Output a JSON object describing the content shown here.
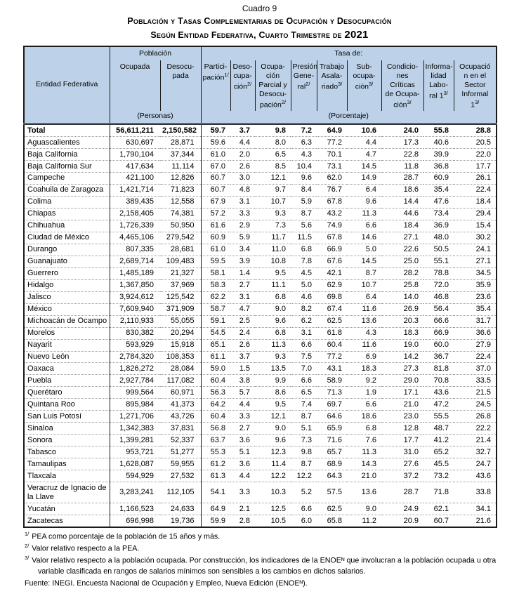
{
  "title": {
    "cuadro": "Cuadro 9",
    "line1": "Población y Tasas Complementarias de Ocupación y Desocupación",
    "line2": "Según Entidad Federativa, Cuarto Trimestre de ",
    "year": "2021"
  },
  "table": {
    "columns": {
      "entity": "Entidad Federativa",
      "poblacion_group": "Población",
      "tasa_group": "Tasa de:",
      "personas_unit": "(Personas)",
      "porcentaje_unit": "(Porcentaje)",
      "ocupada": "Ocupada",
      "desocupada": "Desocu-\npada",
      "rates": [
        {
          "label": "Partici-\npación",
          "sup": "1/"
        },
        {
          "label": "Deso-\ncupa-\nción",
          "sup": "2/"
        },
        {
          "label": "Ocupa-\nción\nParcial y\nDesocu-\npación",
          "sup": "2/"
        },
        {
          "label": "Presión\nGene-\nral",
          "sup": "2/"
        },
        {
          "label": "Trabajo\nAsala-\nriado",
          "sup": "3/"
        },
        {
          "label": "Sub-\nocupa-\nción",
          "sup": "3/"
        },
        {
          "label": "Condicio-\nnes Críticas\nde Ocupa-\nción",
          "sup": "3/"
        },
        {
          "label": "Informa-\nlidad\nLabo-\nral 1",
          "sup": "3/"
        },
        {
          "label": "Ocupació\nn en el\nSector\nInformal\n1",
          "sup": "3/"
        }
      ]
    },
    "rows": [
      {
        "name": "Total",
        "ocupada": "56,611,211",
        "desocupada": "2,150,582",
        "rates": [
          "59.7",
          "3.7",
          "9.8",
          "7.2",
          "64.9",
          "10.6",
          "24.0",
          "55.8",
          "28.8"
        ]
      },
      {
        "name": "Aguascalientes",
        "ocupada": "630,697",
        "desocupada": "28,871",
        "rates": [
          "59.6",
          "4.4",
          "8.0",
          "6.3",
          "77.2",
          "4.4",
          "17.3",
          "40.6",
          "20.5"
        ]
      },
      {
        "name": "Baja California",
        "ocupada": "1,790,104",
        "desocupada": "37,344",
        "rates": [
          "61.0",
          "2.0",
          "6.5",
          "4.3",
          "70.1",
          "4.7",
          "22.8",
          "39.9",
          "22.0"
        ]
      },
      {
        "name": "Baja California Sur",
        "ocupada": "417,634",
        "desocupada": "11,114",
        "rates": [
          "67.0",
          "2.6",
          "8.5",
          "10.4",
          "73.1",
          "14.5",
          "11.8",
          "36.8",
          "17.7"
        ]
      },
      {
        "name": "Campeche",
        "ocupada": "421,100",
        "desocupada": "12,826",
        "rates": [
          "60.7",
          "3.0",
          "12.1",
          "9.6",
          "62.0",
          "14.9",
          "28.7",
          "60.9",
          "26.1"
        ]
      },
      {
        "name": "Coahuila de Zaragoza",
        "ocupada": "1,421,714",
        "desocupada": "71,823",
        "rates": [
          "60.7",
          "4.8",
          "9.7",
          "8.4",
          "76.7",
          "6.4",
          "18.6",
          "35.4",
          "22.4"
        ]
      },
      {
        "name": "Colima",
        "ocupada": "389,435",
        "desocupada": "12,558",
        "rates": [
          "67.9",
          "3.1",
          "10.7",
          "5.9",
          "67.8",
          "9.6",
          "14.4",
          "47.6",
          "18.4"
        ]
      },
      {
        "name": "Chiapas",
        "ocupada": "2,158,405",
        "desocupada": "74,381",
        "rates": [
          "57.2",
          "3.3",
          "9.3",
          "8.7",
          "43.2",
          "11.3",
          "44.6",
          "73.4",
          "29.4"
        ]
      },
      {
        "name": "Chihuahua",
        "ocupada": "1,726,339",
        "desocupada": "50,950",
        "rates": [
          "61.6",
          "2.9",
          "7.3",
          "5.6",
          "74.9",
          "6.6",
          "18.4",
          "36.9",
          "15.4"
        ]
      },
      {
        "name": "Ciudad de México",
        "ocupada": "4,465,106",
        "desocupada": "279,542",
        "rates": [
          "60.9",
          "5.9",
          "11.7",
          "11.5",
          "67.8",
          "14.6",
          "27.1",
          "48.0",
          "30.2"
        ]
      },
      {
        "name": "Durango",
        "ocupada": "807,335",
        "desocupada": "28,681",
        "rates": [
          "61.0",
          "3.4",
          "11.0",
          "6.8",
          "66.9",
          "5.0",
          "22.6",
          "50.5",
          "24.1"
        ]
      },
      {
        "name": "Guanajuato",
        "ocupada": "2,689,714",
        "desocupada": "109,483",
        "rates": [
          "59.5",
          "3.9",
          "10.8",
          "7.8",
          "67.6",
          "14.5",
          "25.0",
          "55.1",
          "27.1"
        ]
      },
      {
        "name": "Guerrero",
        "ocupada": "1,485,189",
        "desocupada": "21,327",
        "rates": [
          "58.1",
          "1.4",
          "9.5",
          "4.5",
          "42.1",
          "8.7",
          "28.2",
          "78.8",
          "34.5"
        ]
      },
      {
        "name": "Hidalgo",
        "ocupada": "1,367,850",
        "desocupada": "37,969",
        "rates": [
          "58.3",
          "2.7",
          "11.1",
          "5.0",
          "62.9",
          "10.7",
          "25.8",
          "72.0",
          "35.9"
        ]
      },
      {
        "name": "Jalisco",
        "ocupada": "3,924,612",
        "desocupada": "125,542",
        "rates": [
          "62.2",
          "3.1",
          "6.8",
          "4.6",
          "69.8",
          "6.4",
          "14.0",
          "46.8",
          "23.6"
        ]
      },
      {
        "name": "México",
        "ocupada": "7,609,940",
        "desocupada": "371,909",
        "rates": [
          "58.7",
          "4.7",
          "9.0",
          "8.2",
          "67.4",
          "11.6",
          "26.9",
          "56.4",
          "35.4"
        ]
      },
      {
        "name": "Michoacán de Ocampo",
        "ocupada": "2,110,933",
        "desocupada": "55,055",
        "rates": [
          "59.1",
          "2.5",
          "9.6",
          "6.2",
          "62.5",
          "13.6",
          "20.3",
          "66.6",
          "31.7"
        ]
      },
      {
        "name": "Morelos",
        "ocupada": "830,382",
        "desocupada": "20,294",
        "rates": [
          "54.5",
          "2.4",
          "6.8",
          "3.1",
          "61.8",
          "4.3",
          "18.3",
          "66.9",
          "36.6"
        ]
      },
      {
        "name": "Nayarit",
        "ocupada": "593,929",
        "desocupada": "15,918",
        "rates": [
          "65.1",
          "2.6",
          "11.3",
          "6.6",
          "60.4",
          "11.6",
          "19.0",
          "60.0",
          "27.9"
        ]
      },
      {
        "name": "Nuevo León",
        "ocupada": "2,784,320",
        "desocupada": "108,353",
        "rates": [
          "61.1",
          "3.7",
          "9.3",
          "7.5",
          "77.2",
          "6.9",
          "14.2",
          "36.7",
          "22.4"
        ]
      },
      {
        "name": "Oaxaca",
        "ocupada": "1,826,272",
        "desocupada": "28,084",
        "rates": [
          "59.0",
          "1.5",
          "13.5",
          "7.0",
          "43.1",
          "18.3",
          "27.3",
          "81.8",
          "37.0"
        ]
      },
      {
        "name": "Puebla",
        "ocupada": "2,927,784",
        "desocupada": "117,082",
        "rates": [
          "60.4",
          "3.8",
          "9.9",
          "6.6",
          "58.9",
          "9.2",
          "29.0",
          "70.8",
          "33.5"
        ]
      },
      {
        "name": "Querétaro",
        "ocupada": "999,564",
        "desocupada": "60,971",
        "rates": [
          "56.3",
          "5.7",
          "8.6",
          "6.5",
          "71.3",
          "1.9",
          "17.1",
          "43.6",
          "21.5"
        ]
      },
      {
        "name": "Quintana Roo",
        "ocupada": "895,984",
        "desocupada": "41,373",
        "rates": [
          "64.2",
          "4.4",
          "9.5",
          "7.4",
          "69.7",
          "6.6",
          "21.0",
          "47.2",
          "24.5"
        ]
      },
      {
        "name": "San Luis Potosí",
        "ocupada": "1,271,706",
        "desocupada": "43,726",
        "rates": [
          "60.4",
          "3.3",
          "12.1",
          "8.7",
          "64.6",
          "18.6",
          "23.0",
          "55.5",
          "26.8"
        ]
      },
      {
        "name": "Sinaloa",
        "ocupada": "1,342,383",
        "desocupada": "37,831",
        "rates": [
          "56.8",
          "2.7",
          "9.0",
          "5.1",
          "65.9",
          "6.8",
          "12.8",
          "48.7",
          "22.2"
        ]
      },
      {
        "name": "Sonora",
        "ocupada": "1,399,281",
        "desocupada": "52,337",
        "rates": [
          "63.7",
          "3.6",
          "9.6",
          "7.3",
          "71.6",
          "7.6",
          "17.7",
          "41.2",
          "21.4"
        ]
      },
      {
        "name": "Tabasco",
        "ocupada": "953,721",
        "desocupada": "51,277",
        "rates": [
          "55.3",
          "5.1",
          "12.3",
          "9.8",
          "65.7",
          "11.3",
          "31.0",
          "65.2",
          "32.7"
        ]
      },
      {
        "name": "Tamaulipas",
        "ocupada": "1,628,087",
        "desocupada": "59,955",
        "rates": [
          "61.2",
          "3.6",
          "11.4",
          "8.7",
          "68.9",
          "14.3",
          "27.6",
          "45.5",
          "24.7"
        ]
      },
      {
        "name": "Tlaxcala",
        "ocupada": "594,929",
        "desocupada": "27,532",
        "rates": [
          "61.3",
          "4.4",
          "12.2",
          "12.2",
          "64.3",
          "21.0",
          "37.2",
          "73.2",
          "43.6"
        ]
      },
      {
        "name": "Veracruz de Ignacio de la Llave",
        "ocupada": "3,283,241",
        "desocupada": "112,105",
        "rates": [
          "54.1",
          "3.3",
          "10.3",
          "5.2",
          "57.5",
          "13.6",
          "28.7",
          "71.8",
          "33.8"
        ]
      },
      {
        "name": "Yucatán",
        "ocupada": "1,166,523",
        "desocupada": "24,633",
        "rates": [
          "64.9",
          "2.1",
          "12.5",
          "6.6",
          "62.5",
          "9.0",
          "24.9",
          "62.1",
          "34.1"
        ]
      },
      {
        "name": "Zacatecas",
        "ocupada": "696,998",
        "desocupada": "19,736",
        "rates": [
          "59.9",
          "2.8",
          "10.5",
          "6.0",
          "65.8",
          "11.2",
          "20.9",
          "60.7",
          "21.6"
        ]
      }
    ]
  },
  "footnotes": [
    {
      "sup": "1/",
      "text": "PEA como porcentaje de la población de 15 años y más."
    },
    {
      "sup": "2/",
      "text": "Valor relativo respecto a la PEA."
    },
    {
      "sup": "3/",
      "text": "Valor relativo respecto a la población ocupada. Por construcción, los indicadores de la ENOEᴺ que involucran a la población ocupada u otra variable clasificada en rangos de salarios mínimos son sensibles a los cambios en dichos salarios."
    }
  ],
  "source": "Fuente: INEGI. Encuesta Nacional de Ocupación y Empleo, Nueva Edición (ENOEᴺ)."
}
